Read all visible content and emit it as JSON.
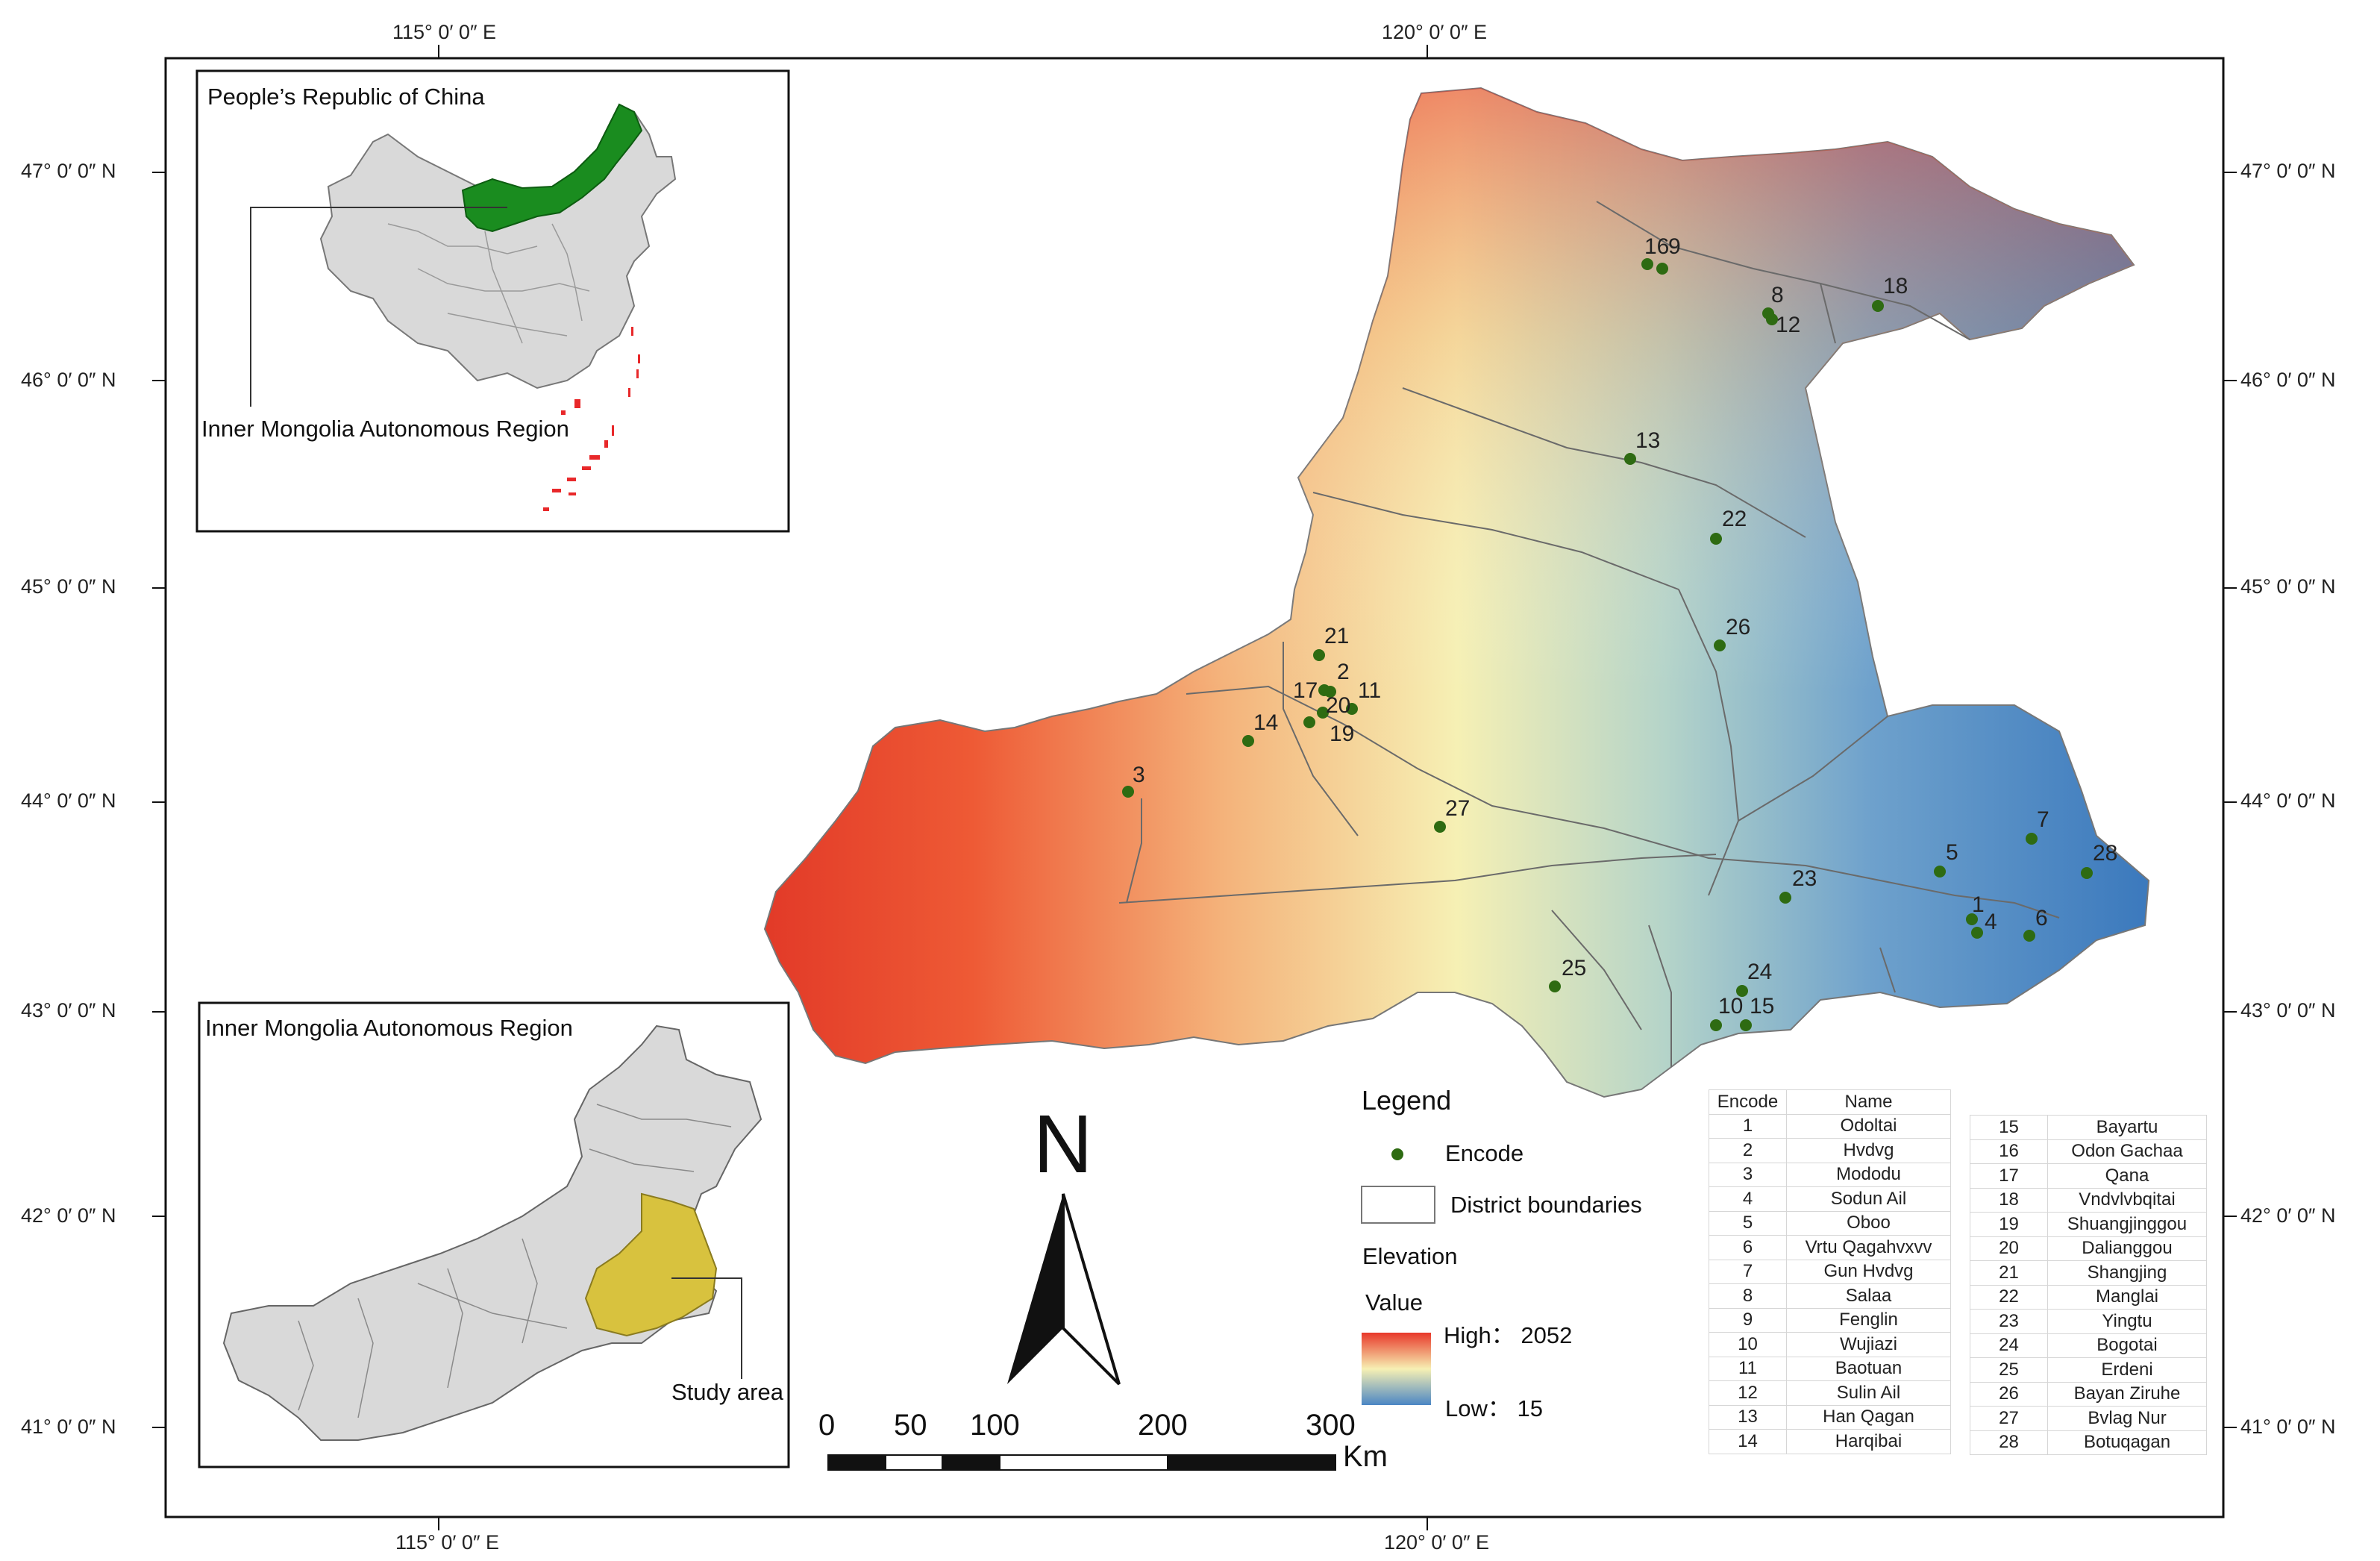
{
  "map": {
    "graticule": {
      "top_lon": [
        "115°  0′  0″  E",
        "120°  0′  0″  E"
      ],
      "bottom_lon": [
        "115°  0′  0″  E",
        "120°  0′  0″  E"
      ],
      "left_lat": [
        "47°  0′  0″  N",
        "46°  0′  0″  N",
        "45°  0′  0″  N",
        "44°  0′  0″  N",
        "43°  0′  0″  N",
        "42°  0′  0″  N",
        "41°  0′  0″  N"
      ],
      "right_lat": [
        "47°  0′  0″  N",
        "46°  0′  0″  N",
        "45°  0′  0″  N",
        "44°  0′  0″  N",
        "43°  0′  0″  N",
        "42°  0′  0″  N",
        "41°  0′  0″  N"
      ]
    },
    "sites": [
      {
        "code": "1",
        "name": "Odoltai"
      },
      {
        "code": "2",
        "name": "Hvdvg"
      },
      {
        "code": "3",
        "name": "Mododu"
      },
      {
        "code": "4",
        "name": "Sodun Ail"
      },
      {
        "code": "5",
        "name": "Oboo"
      },
      {
        "code": "6",
        "name": "Vrtu Qagahvxvv"
      },
      {
        "code": "7",
        "name": "Gun Hvdvg"
      },
      {
        "code": "8",
        "name": "Salaa"
      },
      {
        "code": "9",
        "name": "Fenglin"
      },
      {
        "code": "10",
        "name": "Wujiazi"
      },
      {
        "code": "11",
        "name": "Baotuan"
      },
      {
        "code": "12",
        "name": "Sulin Ail"
      },
      {
        "code": "13",
        "name": "Han Qagan"
      },
      {
        "code": "14",
        "name": "Harqibai"
      },
      {
        "code": "15",
        "name": "Bayartu"
      },
      {
        "code": "16",
        "name": "Odon Gachaa"
      },
      {
        "code": "17",
        "name": "Qana"
      },
      {
        "code": "18",
        "name": "Vndvlvbqitai"
      },
      {
        "code": "19",
        "name": "Shuangjinggou"
      },
      {
        "code": "20",
        "name": "Dalianggou"
      },
      {
        "code": "21",
        "name": "Shangjing"
      },
      {
        "code": "22",
        "name": "Manglai"
      },
      {
        "code": "23",
        "name": "Yingtu"
      },
      {
        "code": "24",
        "name": "Bogotai"
      },
      {
        "code": "25",
        "name": "Erdeni"
      },
      {
        "code": "26",
        "name": "Bayan Ziruhe"
      },
      {
        "code": "27",
        "name": "Bvlag Nur"
      },
      {
        "code": "28",
        "name": "Botuqagan"
      }
    ],
    "point_color": "#2e6b12",
    "elevation_high_color": "#e8382a",
    "elevation_mid_color": "#f7f3b5",
    "elevation_low_color": "#3f7fc0"
  },
  "inset_china": {
    "title": "People’s Republic of China",
    "label": "Inner Mongolia Autonomous Region",
    "highlight_color": "#1a8c1f"
  },
  "inset_im": {
    "title": "Inner Mongolia Autonomous Region",
    "label": "Study area",
    "highlight_color": "#d8c23e"
  },
  "legend": {
    "title": "Legend",
    "encode_label": "Encode",
    "boundary_label": "District boundaries",
    "elevation_title": "Elevation",
    "value_title": "Value",
    "high_label": "High： 2052",
    "low_label": "Low： 15"
  },
  "table": {
    "header_code": "Encode",
    "header_name": "Name"
  },
  "north_arrow": {
    "letter": "N"
  },
  "scale_bar": {
    "ticks": [
      "0",
      "50",
      "100",
      "200",
      "300"
    ],
    "unit": "Km"
  }
}
